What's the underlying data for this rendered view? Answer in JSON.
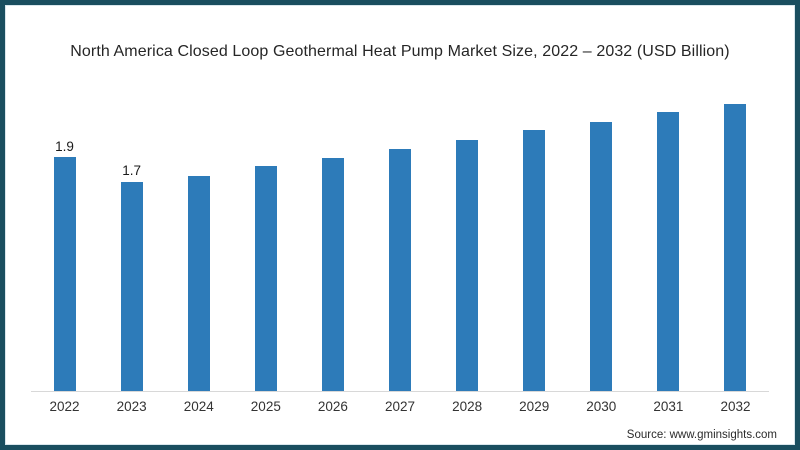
{
  "header": {
    "title": "North America Closed Loop Geothermal Heat Pump Market Size, 2022 – 2032 (USD Billion)"
  },
  "footer": {
    "source": "Source: www.gminsights.com"
  },
  "colors": {
    "bar": "#2d7bb9",
    "frame_border": "#1a4e5f",
    "axis_line": "#d8d8d8",
    "title_text": "#262626",
    "tick_text": "#333333"
  },
  "chart_data": {
    "type": "bar",
    "title": "North America Closed Loop Geothermal Heat Pump Market Size, 2022 – 2032 (USD Billion)",
    "categories": [
      "2022",
      "2023",
      "2024",
      "2025",
      "2026",
      "2027",
      "2028",
      "2029",
      "2030",
      "2031",
      "2032"
    ],
    "values": [
      1.9,
      1.7,
      1.75,
      1.83,
      1.89,
      1.97,
      2.04,
      2.12,
      2.19,
      2.27,
      2.33
    ],
    "data_labels": [
      "1.9",
      "1.7",
      "",
      "",
      "",
      "",
      "",
      "",
      "",
      "",
      ""
    ],
    "xlabel": "",
    "ylabel": "",
    "ylim": [
      0,
      2.6
    ],
    "grid": false,
    "legend": false,
    "source": "Source: www.gminsights.com"
  }
}
